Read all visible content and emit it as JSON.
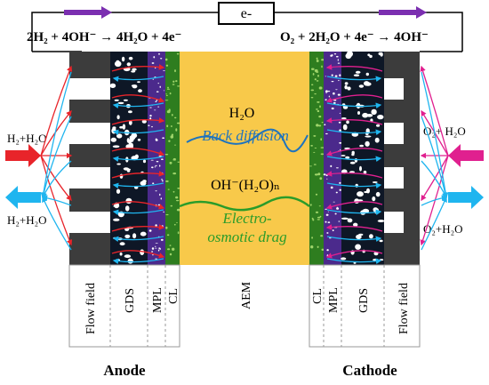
{
  "circuit": {
    "electron_label": "e-",
    "anode_equation": "2H₂ + 4OH⁻ → 4H₂O + 4e⁻",
    "cathode_equation": "O₂ + 2H₂O + 4e⁻ → 4OH⁻"
  },
  "left_flows": {
    "inlet": "H₂+H₂O",
    "outlet": "H₂+H₂O"
  },
  "right_flows": {
    "inlet": "O₂+ H₂O",
    "outlet": "O₂+H₂O"
  },
  "membrane": {
    "water_label": "H₂O",
    "back_diffusion_label": "Back diffusion",
    "hydroxide_label": "OH⁻(H₂O)ₙ",
    "eod_label_line1": "Electro-",
    "eod_label_line2": "osmotic drag"
  },
  "layers": {
    "left": [
      "Flow field",
      "GDS",
      "MPL",
      "CL"
    ],
    "center": "AEM",
    "right": [
      "CL",
      "MPL",
      "GDS",
      "Flow field"
    ]
  },
  "electrodes": {
    "anode": "Anode",
    "cathode": "Cathode"
  },
  "colors": {
    "membrane": "#f8c94a",
    "flow_plate": "#3c3c3c",
    "gds_bg": "#0e1726",
    "mpl": "#4b2a8c",
    "cl": "#2e7d1f",
    "hydrogen_arrow": "#e8242a",
    "water_arrow": "#1fb5ef",
    "oxygen_arrow": "#e0208f",
    "electron_arrow": "#7b2fb0",
    "back_diffusion": "#1e73be",
    "eod": "#2a9c2a"
  }
}
